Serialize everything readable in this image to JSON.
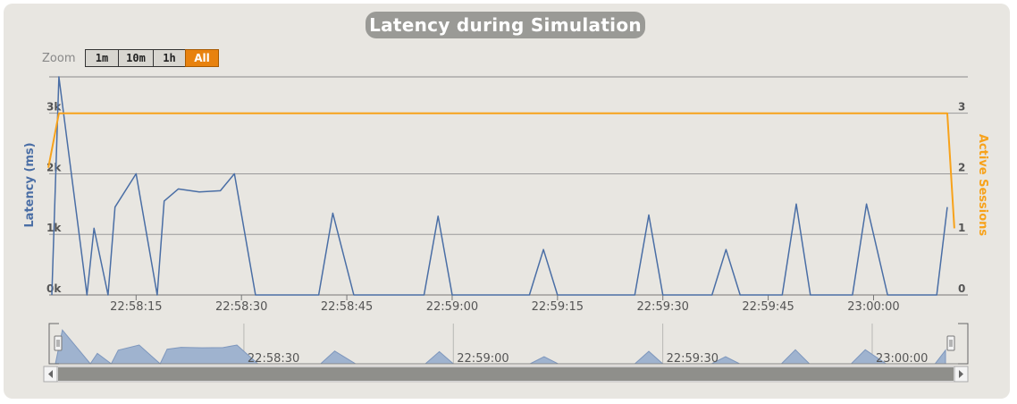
{
  "chart_data": {
    "type": "line",
    "title": "Latency during Simulation",
    "zoom": {
      "label": "Zoom",
      "buttons": [
        "1m",
        "10m",
        "1h",
        "All"
      ],
      "selected": "All"
    },
    "y_left": {
      "label": "Latency (ms)",
      "ticks": [
        "0k",
        "1k",
        "2k",
        "3k"
      ],
      "range": [
        0,
        3600
      ]
    },
    "y_right": {
      "label": "Active Sessions",
      "ticks": [
        "0",
        "1",
        "2",
        "3"
      ],
      "range": [
        0,
        3.6
      ]
    },
    "x_ticks": [
      "22:58:15",
      "22:58:30",
      "22:58:45",
      "22:59:00",
      "22:59:15",
      "22:59:30",
      "22:59:45",
      "23:00:00"
    ],
    "navigator_ticks": [
      "22:58:30",
      "22:59:00",
      "22:59:30",
      "23:00:00"
    ],
    "grid": true,
    "series": [
      {
        "name": "Latency",
        "axis": "left",
        "color": "#4a6ea5",
        "points": [
          [
            0,
            0
          ],
          [
            1,
            3600
          ],
          [
            5,
            0
          ],
          [
            6,
            1100
          ],
          [
            8,
            0
          ],
          [
            9,
            1450
          ],
          [
            12,
            2000
          ],
          [
            15,
            0
          ],
          [
            16,
            1550
          ],
          [
            18,
            1750
          ],
          [
            21,
            1700
          ],
          [
            24,
            1720
          ],
          [
            26,
            2000
          ],
          [
            29,
            0
          ],
          [
            38,
            0
          ],
          [
            40,
            1350
          ],
          [
            43,
            0
          ],
          [
            53,
            0
          ],
          [
            55,
            1300
          ],
          [
            57,
            0
          ],
          [
            68,
            0
          ],
          [
            70,
            750
          ],
          [
            72,
            0
          ],
          [
            83,
            0
          ],
          [
            85,
            1320
          ],
          [
            87,
            0
          ],
          [
            94,
            0
          ],
          [
            96,
            750
          ],
          [
            98,
            0
          ],
          [
            104,
            0
          ],
          [
            106,
            1500
          ],
          [
            108,
            0
          ],
          [
            114,
            0
          ],
          [
            116,
            1500
          ],
          [
            119,
            0
          ],
          [
            126,
            0
          ],
          [
            127.5,
            1450
          ]
        ]
      },
      {
        "name": "Active Sessions",
        "axis": "right",
        "color": "#f7a21b",
        "points": [
          [
            -0.5,
            2.1
          ],
          [
            1,
            3
          ],
          [
            127.5,
            3
          ],
          [
            128.5,
            1.1
          ]
        ]
      }
    ]
  }
}
